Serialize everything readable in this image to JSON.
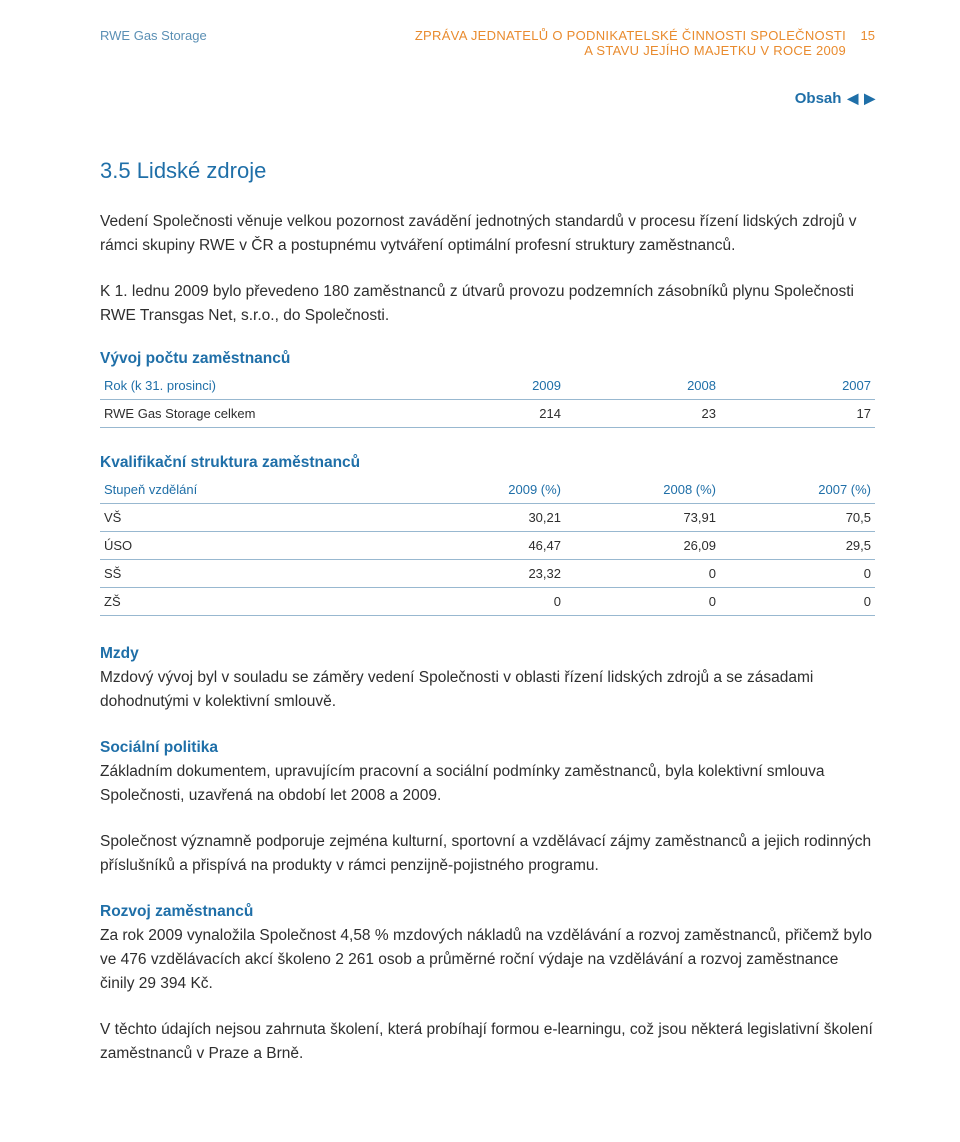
{
  "header": {
    "company": "RWE Gas Storage",
    "report_title_l1": "ZPRÁVA JEDNATELŮ O PODNIKATELSKÉ ČINNOSTI SPOLEČNOSTI",
    "report_title_l2": "A STAVU JEJÍHO MAJETKU V ROCE 2009",
    "page_number": "15",
    "obsah_label": "Obsah"
  },
  "section": {
    "heading": "3.5 Lidské zdroje",
    "p1": "Vedení Společnosti věnuje velkou pozornost zavádění jednotných standardů v procesu řízení lidských zdrojů v rámci skupiny RWE v ČR a postupnému vytváření optimální profesní struktury zaměstnanců.",
    "p2": "K  1. lednu 2009 bylo převedeno 180 zaměstnanců z útvarů provozu podzemních zásobníků plynu Společnosti RWE Transgas Net, s.r.o., do Společnosti."
  },
  "table1": {
    "title": "Vývoj počtu zaměstnanců",
    "header_label": "Rok (k 31. prosinci)",
    "cols": [
      "2009",
      "2008",
      "2007"
    ],
    "rows": [
      {
        "label": "RWE Gas Storage celkem",
        "vals": [
          "214",
          "23",
          "17"
        ]
      }
    ]
  },
  "table2": {
    "title": "Kvalifikační struktura zaměstnanců",
    "header_label": "Stupeň vzdělání",
    "cols": [
      "2009 (%)",
      "2008 (%)",
      "2007 (%)"
    ],
    "rows": [
      {
        "label": "VŠ",
        "vals": [
          "30,21",
          "73,91",
          "70,5"
        ]
      },
      {
        "label": "ÚSO",
        "vals": [
          "46,47",
          "26,09",
          "29,5"
        ]
      },
      {
        "label": "SŠ",
        "vals": [
          "23,32",
          "0",
          "0"
        ]
      },
      {
        "label": "ZŠ",
        "vals": [
          "0",
          "0",
          "0"
        ]
      }
    ]
  },
  "mzdy": {
    "heading": "Mzdy",
    "text": "Mzdový vývoj byl v souladu se záměry vedení Společnosti v oblasti řízení lidských zdrojů a se zásadami dohodnutými v kolektivní smlouvě."
  },
  "social": {
    "heading": "Sociální politika",
    "p1": "Základním dokumentem, upravujícím pracovní a sociální podmínky zaměstnanců, byla kolektivní smlouva Společnosti, uzavřená na období let 2008 a 2009.",
    "p2": "Společnost významně podporuje zejména kulturní, sportovní a vzdělávací zájmy zaměstnanců a jejich rodinných příslušníků a přispívá na produkty v rámci penzijně-pojistného programu."
  },
  "rozvoj": {
    "heading": "Rozvoj zaměstnanců",
    "p1": "Za rok 2009 vynaložila Společnost 4,58 % mzdových nákladů na vzdělávání a rozvoj zaměstnanců, přičemž bylo ve 476 vzdělávacích akcí školeno 2 261 osob a průměrné roční výdaje na vzdělávání a rozvoj zaměstnance činily 29 394 Kč.",
    "p2": "V těchto údajích nejsou zahrnuta školení, která probíhají formou e-learningu, což jsou některá legislativní školení zaměstnanců v Praze a Brně."
  },
  "colors": {
    "blue": "#1f6fa8",
    "orange": "#e98b2e",
    "text": "#2e2e2e",
    "rule": "#98b8d0"
  }
}
